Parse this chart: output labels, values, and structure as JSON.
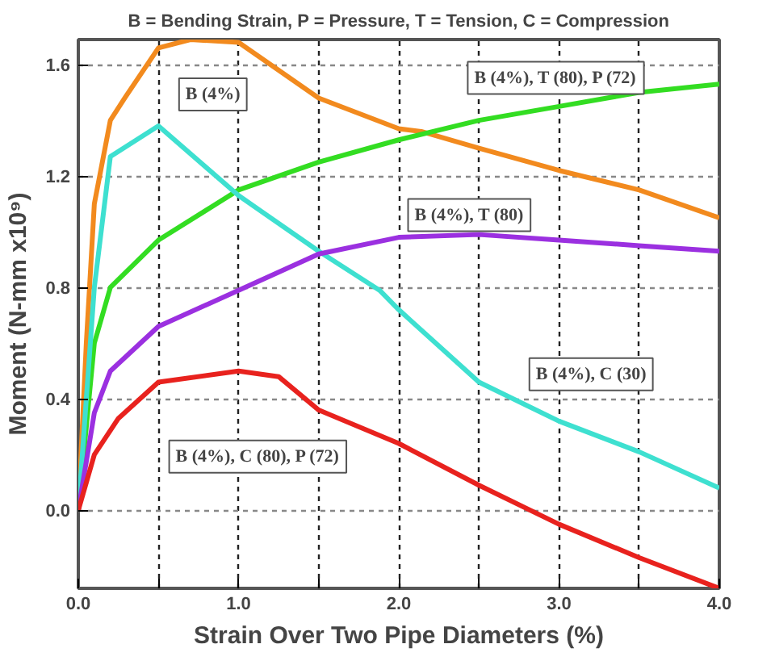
{
  "chart_data": {
    "type": "line",
    "title": "B = Bending Strain, P = Pressure, T = Tension, C = Compression",
    "xlabel": "Strain Over Two Pipe Diameters (%)",
    "ylabel": "Moment (N-mm x10⁹)",
    "xlim": [
      0,
      4
    ],
    "ylim": [
      -0.28,
      1.69
    ],
    "xticks": [
      {
        "value": 0,
        "label": "0.0"
      },
      {
        "value": 0.5,
        "label": null
      },
      {
        "value": 1,
        "label": "1.0"
      },
      {
        "value": 1.5,
        "label": null
      },
      {
        "value": 2,
        "label": "2.0"
      },
      {
        "value": 2.5,
        "label": null
      },
      {
        "value": 3,
        "label": "3.0"
      },
      {
        "value": 3.5,
        "label": null
      },
      {
        "value": 4,
        "label": "4.0"
      }
    ],
    "yticks": [
      {
        "value": 0,
        "label": "0.0"
      },
      0.4,
      0.8,
      1.2,
      1.6
    ],
    "grid": true,
    "marker": "none",
    "line_style": "solid",
    "series": [
      {
        "name": "B (4%)",
        "color": "#f28a1e",
        "x": [
          0,
          0.05,
          0.1,
          0.2,
          0.29,
          0.5,
          0.7,
          1.0,
          1.5,
          2.0,
          2.14,
          2.5,
          3.0,
          3.5,
          4.0
        ],
        "values": [
          0,
          0.6,
          1.1,
          1.4,
          1.48,
          1.66,
          1.69,
          1.68,
          1.48,
          1.37,
          1.36,
          1.3,
          1.22,
          1.15,
          1.05
        ]
      },
      {
        "name": "B (4%), T (80), P (72)",
        "color": "#33dd22",
        "x": [
          0,
          0.1,
          0.2,
          0.5,
          1.0,
          1.5,
          2.0,
          2.5,
          3.0,
          3.5,
          4.0
        ],
        "values": [
          0,
          0.6,
          0.8,
          0.97,
          1.15,
          1.25,
          1.33,
          1.4,
          1.45,
          1.5,
          1.53
        ]
      },
      {
        "name": "B (4%), C (30)",
        "color": "#3ee0d0",
        "x": [
          0,
          0.1,
          0.2,
          0.5,
          1.0,
          1.5,
          1.88,
          2.0,
          2.5,
          3.0,
          3.5,
          4.0
        ],
        "values": [
          0,
          0.8,
          1.27,
          1.38,
          1.13,
          0.93,
          0.79,
          0.72,
          0.46,
          0.32,
          0.21,
          0.08
        ]
      },
      {
        "name": "B (4%), T (80)",
        "color": "#9b30e0",
        "x": [
          0,
          0.1,
          0.2,
          0.5,
          1.0,
          1.5,
          2.0,
          2.5,
          3.0,
          3.5,
          4.0
        ],
        "values": [
          0,
          0.35,
          0.5,
          0.66,
          0.79,
          0.92,
          0.98,
          0.99,
          0.97,
          0.95,
          0.93
        ]
      },
      {
        "name": "B (4%), C (80), P (72)",
        "color": "#e8221e",
        "x": [
          0,
          0.1,
          0.25,
          0.5,
          1.0,
          1.25,
          1.5,
          2.0,
          2.5,
          3.0,
          3.5,
          4.0
        ],
        "values": [
          0,
          0.2,
          0.33,
          0.46,
          0.5,
          0.48,
          0.36,
          0.24,
          0.09,
          -0.05,
          -0.17,
          -0.28
        ]
      }
    ]
  }
}
